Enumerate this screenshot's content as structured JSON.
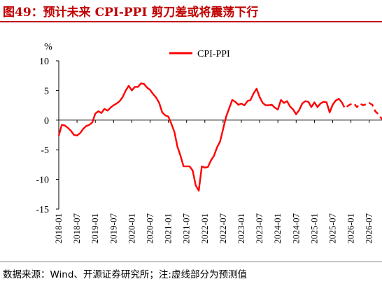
{
  "title": "图49：预计未来 CPI-PPI 剪刀差或将震荡下行",
  "source": "数据来源：Wind、开源证券研究所；注:虚线部分为预测值",
  "colors": {
    "title": "#c00000",
    "series": "#ff0000",
    "axis": "#000000"
  },
  "chart_data": {
    "type": "line",
    "ylabel": "%",
    "ylim": [
      -15,
      10
    ],
    "yticks": [
      10,
      5,
      0,
      -5,
      -10,
      -15
    ],
    "xticks": [
      "2018-01",
      "2018-07",
      "2019-01",
      "2019-07",
      "2020-01",
      "2020-07",
      "2021-01",
      "2021-07",
      "2022-01",
      "2022-07",
      "2023-01",
      "2023-07",
      "2024-01",
      "2024-07",
      "2025-01",
      "2025-07",
      "2026-01",
      "2026-07"
    ],
    "legend": "top-center",
    "series": [
      {
        "name": "CPI-PPI",
        "start": "2018-01",
        "actual": [
          -2.6,
          -0.8,
          -0.9,
          -1.3,
          -1.8,
          -2.5,
          -2.6,
          -2.2,
          -1.5,
          -1.0,
          -0.8,
          -0.4,
          1.1,
          1.5,
          1.2,
          1.9,
          1.6,
          2.1,
          2.5,
          2.8,
          3.2,
          3.9,
          5.0,
          5.8,
          5.0,
          5.6,
          5.6,
          6.2,
          6.1,
          5.5,
          5.1,
          4.4,
          3.8,
          2.9,
          1.3,
          0.8,
          0.6,
          -0.6,
          -2.0,
          -4.5,
          -6.0,
          -7.8,
          -7.8,
          -7.8,
          -8.5,
          -11.0,
          -11.9,
          -7.8,
          -8.0,
          -7.9,
          -6.8,
          -6.0,
          -4.6,
          -3.6,
          -1.5,
          0.6,
          2.0,
          3.4,
          3.1,
          2.6,
          2.8,
          2.5,
          3.2,
          3.4,
          4.5,
          5.3,
          3.9,
          2.9,
          2.5,
          2.5,
          2.6,
          2.1,
          1.8,
          3.4,
          2.9,
          3.2,
          2.3,
          1.8,
          1.0,
          1.7,
          2.8,
          3.2,
          3.1,
          2.2,
          3.0,
          2.2,
          2.8,
          3.1,
          3.0,
          1.3,
          2.6,
          3.3,
          3.6,
          3.0
        ],
        "forecast": [
          2.0,
          2.4,
          2.7,
          2.8,
          2.2,
          2.8,
          2.5,
          2.7,
          2.9,
          2.6,
          1.5,
          1.0,
          0.3,
          -0.2,
          -0.4,
          -0.4
        ]
      }
    ]
  }
}
